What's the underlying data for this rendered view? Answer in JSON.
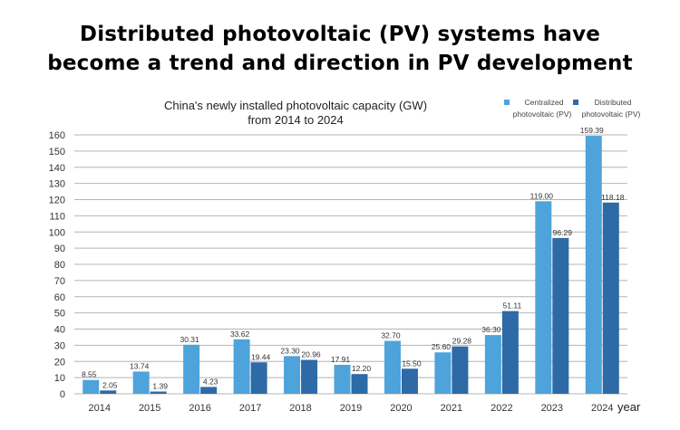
{
  "headline": {
    "line1": "Distributed photovoltaic (PV) systems have",
    "line2": "become a trend and direction in PV development"
  },
  "chart_data": {
    "type": "bar",
    "title_line1": "China's newly installed photovoltaic capacity (GW)",
    "title_line2": "from 2014 to 2024",
    "xlabel": "year",
    "ylabel": "",
    "ylim": [
      0,
      160
    ],
    "yticks": [
      0,
      10,
      20,
      30,
      40,
      50,
      60,
      70,
      80,
      90,
      100,
      110,
      120,
      130,
      140,
      150,
      160
    ],
    "grid": true,
    "legend_position": "top-right",
    "categories": [
      "2014",
      "2015",
      "2016",
      "2017",
      "2018",
      "2019",
      "2020",
      "2021",
      "2022",
      "2023",
      "2024"
    ],
    "series": [
      {
        "name": "Centralized photovoltaic (PV)",
        "legend_line1": "Centralized",
        "legend_line2": "photovoltaic (PV)",
        "color": "#4ea3db",
        "values": [
          8.55,
          13.74,
          30.31,
          33.62,
          23.3,
          17.91,
          32.7,
          25.6,
          36.3,
          119.0,
          159.39
        ],
        "labels": [
          "8.55",
          "13.74",
          "30.31",
          "33.62",
          "23.30",
          "17.91",
          "32.70",
          "25.60",
          "36.30",
          "119.00",
          "159.39"
        ]
      },
      {
        "name": "Distributed photovoltaic (PV)",
        "legend_line1": "Distributed",
        "legend_line2": "photovoltaic (PV)",
        "color": "#2d6aa6",
        "values": [
          2.05,
          1.39,
          4.23,
          19.44,
          20.96,
          12.2,
          15.5,
          29.28,
          51.11,
          96.29,
          118.18
        ],
        "labels": [
          "2.05",
          "1.39",
          "4.23",
          "19.44",
          "20.96",
          "12.20",
          "15.50",
          "29.28",
          "51.11",
          "96.29",
          "118.18"
        ]
      }
    ]
  }
}
